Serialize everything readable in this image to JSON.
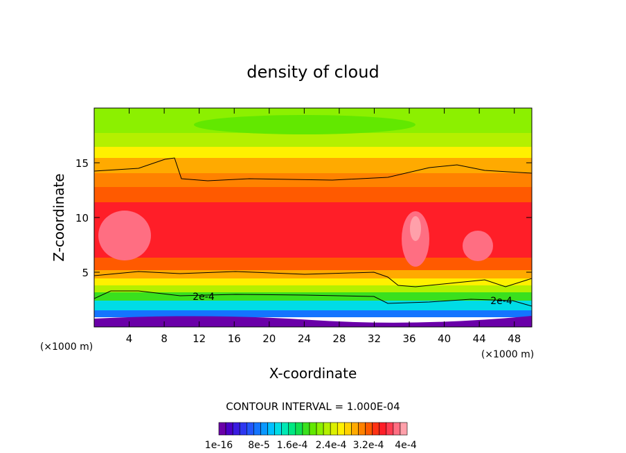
{
  "chart_data": {
    "type": "heatmap",
    "title": "density of cloud",
    "xlabel": "X-coordinate",
    "ylabel": "Z-coordinate",
    "x_unit_left": "(×1000 m)",
    "x_unit_right": "(×1000 m)",
    "xlim": [
      0,
      50
    ],
    "ylim": [
      0,
      20
    ],
    "x_ticks": [
      4,
      8,
      12,
      16,
      20,
      24,
      28,
      32,
      36,
      40,
      44,
      48
    ],
    "x_tick_labels": [
      "4",
      "8",
      "12",
      "16",
      "20",
      "24",
      "28",
      "32",
      "36",
      "40",
      "44",
      "48"
    ],
    "y_ticks": [
      5,
      10,
      15
    ],
    "y_tick_labels": [
      "5",
      "10",
      "15"
    ],
    "contour_interval_text": "CONTOUR INTERVAL = 1.000E-04",
    "contour_line_value": "2e-4",
    "colorbar": {
      "min": 1e-16,
      "max": 0.0004,
      "levels": 27,
      "tick_labels": [
        "1e-16",
        "8e-5",
        "1.6e-4",
        "2.4e-4",
        "3.2e-4",
        "4e-4"
      ],
      "colors": [
        "#6a00a8",
        "#4b00c8",
        "#3a1be0",
        "#2d37f0",
        "#2256fa",
        "#1474ff",
        "#0a98ff",
        "#00c0ff",
        "#00dce6",
        "#00e8b4",
        "#00e882",
        "#10e050",
        "#3ae01e",
        "#62e800",
        "#8cf000",
        "#b4f000",
        "#dcf000",
        "#fff000",
        "#ffd200",
        "#ffaa00",
        "#ff8200",
        "#ff5a00",
        "#ff3214",
        "#ff1e28",
        "#ff3c50",
        "#ff6e82",
        "#ffa0aa"
      ]
    }
  }
}
